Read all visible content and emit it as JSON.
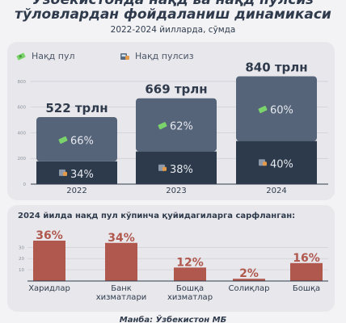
{
  "header": {
    "title_line1": "Ўзбекистонда нақд ва нақд пулсиз",
    "title_line2": "тўловлардан фойдаланиш динамикаси",
    "subtitle": "2022-2024 йилларда, сўмда"
  },
  "legend": {
    "cash": "Нақд пул",
    "noncash": "Нақд пулсиз",
    "cash_icon": "cash-icon",
    "noncash_icon": "terminal-icon"
  },
  "colors": {
    "cash_segment": "#56647a",
    "noncash_segment": "#2c3a4c",
    "spend_bar": "#b0574e",
    "cash_icon": "#7bd36b",
    "noncash_icon": "#e39a4b"
  },
  "bottom": {
    "title": "2024 йилда нақд пул кўпинча қуйидагиларга сарфланган:"
  },
  "source": "Манба: Ўзбекистон МБ",
  "chart_data": [
    {
      "type": "bar",
      "stacked": true,
      "categories": [
        "2022",
        "2023",
        "2024"
      ],
      "totals": [
        522,
        669,
        840
      ],
      "total_labels": [
        "522 трлн",
        "669 трлн",
        "840 трлн"
      ],
      "series": [
        {
          "name": "Нақд пулсиз",
          "percent": [
            34,
            38,
            40
          ],
          "labels": [
            "34%",
            "38%",
            "40%"
          ]
        },
        {
          "name": "Нақд пул",
          "percent": [
            66,
            62,
            60
          ],
          "labels": [
            "66%",
            "62%",
            "60%"
          ]
        }
      ],
      "yticks": [
        0,
        200,
        400,
        600,
        800
      ],
      "ylim": [
        0,
        900
      ],
      "grid": true,
      "legend_position": "top-left"
    },
    {
      "type": "bar",
      "categories": [
        "Харидлар",
        "Банк хизматлари",
        "Бошқа хизматлар",
        "Солиқлар",
        "Бошқа"
      ],
      "category_lines": [
        [
          "Харидлар"
        ],
        [
          "Банк",
          "хизматлари"
        ],
        [
          "Бошқа",
          "хизматлар"
        ],
        [
          "Солиқлар"
        ],
        [
          "Бошқа"
        ]
      ],
      "values": [
        36,
        34,
        12,
        2,
        16
      ],
      "value_labels": [
        "36%",
        "34%",
        "12%",
        "2%",
        "16%"
      ],
      "yticks": [
        10,
        20,
        30
      ],
      "ylim": [
        0,
        36
      ],
      "grid": true
    }
  ]
}
